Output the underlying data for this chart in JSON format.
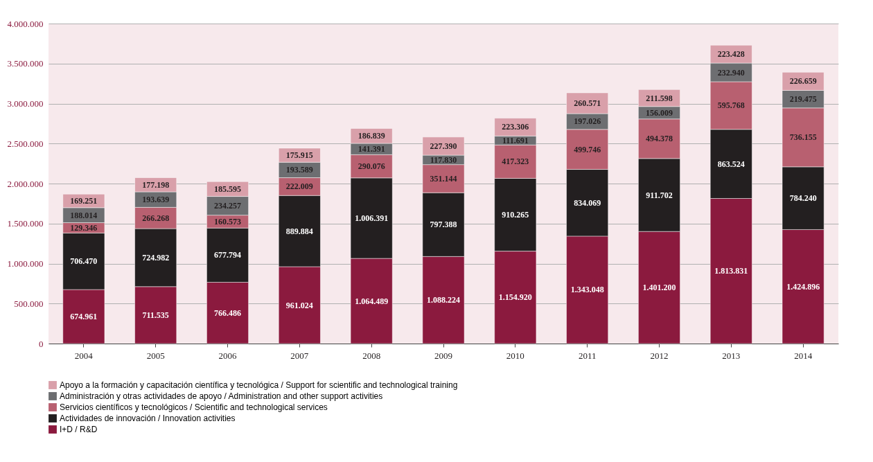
{
  "chart_data": {
    "type": "bar",
    "stacked": true,
    "categories": [
      "2004",
      "2005",
      "2006",
      "2007",
      "2008",
      "2009",
      "2010",
      "2011",
      "2012",
      "2013",
      "2014"
    ],
    "series": [
      {
        "name": "I+D / R&D",
        "color": "#8b1a3e",
        "values": [
          674961,
          711535,
          766486,
          961024,
          1064489,
          1088224,
          1154920,
          1343048,
          1401200,
          1813831,
          1424896
        ],
        "value_labels": [
          "674.961",
          "711.535",
          "766.486",
          "961.024",
          "1.064.489",
          "1.088.224",
          "1.154.920",
          "1.343.048",
          "1.401.200",
          "1.813.831",
          "1.424.896"
        ]
      },
      {
        "name": "Actividades de innovación / Innovation activities",
        "color": "#231f20",
        "values": [
          706470,
          724982,
          677794,
          889884,
          1006391,
          797388,
          910265,
          834069,
          911702,
          863524,
          784240
        ],
        "value_labels": [
          "706.470",
          "724.982",
          "677.794",
          "889.884",
          "1.006.391",
          "797.388",
          "910.265",
          "834.069",
          "911.702",
          "863.524",
          "784.240"
        ]
      },
      {
        "name": "Servicios científicos y tecnológicos / Scientific and technological services",
        "color": "#b86070",
        "values": [
          129346,
          266268,
          160573,
          222009,
          290076,
          351144,
          417323,
          499746,
          494378,
          595768,
          736155
        ],
        "value_labels": [
          "129.346",
          "266.268",
          "160.573",
          "222.009",
          "290.076",
          "351.144",
          "417.323",
          "499.746",
          "494.378",
          "595.768",
          "736.155"
        ]
      },
      {
        "name": "Administración y otras actividades de apoyo / Administration and other support activities",
        "color": "#6d6e71",
        "values": [
          188014,
          193639,
          234257,
          193589,
          141391,
          117830,
          111691,
          197026,
          156009,
          232940,
          219475
        ],
        "value_labels": [
          "188.014",
          "193.639",
          "234.257",
          "193.589",
          "141.391",
          "117.830",
          "111.691",
          "197.026",
          "156.009",
          "232.940",
          "219.475"
        ]
      },
      {
        "name": "Apoyo a la formación y capacitación científica y tecnológica / Support for scientific and technological training",
        "color": "#d9a0aa",
        "values": [
          169251,
          177198,
          185595,
          175915,
          186839,
          227390,
          223306,
          260571,
          211598,
          223428,
          226659
        ],
        "value_labels": [
          "169.251",
          "177.198",
          "185.595",
          "175.915",
          "186.839",
          "227.390",
          "223.306",
          "260.571",
          "211.598",
          "223.428",
          "226.659"
        ]
      }
    ],
    "ylim": [
      0,
      4000000
    ],
    "yticks": [
      {
        "value": 0,
        "label": "0"
      },
      {
        "value": 500000,
        "label": "500.000"
      },
      {
        "value": 1000000,
        "label": "1.000.000"
      },
      {
        "value": 1500000,
        "label": "1.500.000"
      },
      {
        "value": 2000000,
        "label": "2.000.000"
      },
      {
        "value": 2500000,
        "label": "2.500.000"
      },
      {
        "value": 3000000,
        "label": "3.000.000"
      },
      {
        "value": 3500000,
        "label": "3.500.000"
      },
      {
        "value": 4000000,
        "label": "4.000.000"
      }
    ],
    "grid": "y",
    "legend": "bottom"
  }
}
